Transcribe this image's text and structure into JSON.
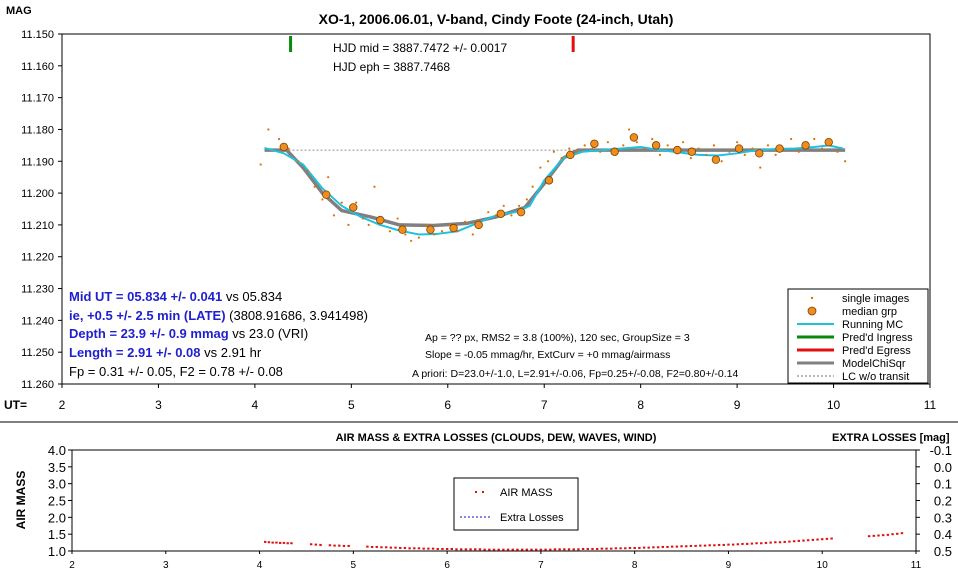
{
  "chart_data": [
    {
      "type": "scatter",
      "title": "XO-1, 2006.06.01, V-band, Cindy Foote (24-inch, Utah)",
      "ylabel": "MAG",
      "xlabel": "UT=",
      "ylim": [
        11.15,
        11.26
      ],
      "y_reversed": true,
      "xlim": [
        2,
        11
      ],
      "x_ticks": [
        "2",
        "3",
        "4",
        "5",
        "6",
        "7",
        "8",
        "9",
        "10",
        "11"
      ],
      "y_ticks": [
        "11.150",
        "11.160",
        "11.170",
        "11.180",
        "11.190",
        "11.200",
        "11.210",
        "11.220",
        "11.230",
        "11.240",
        "11.250",
        "11.260"
      ],
      "grid": false,
      "legend_placement": "bottom-right",
      "legend": [
        "single images",
        "median grp",
        "Running MC",
        "Pred'd Ingress",
        "Pred'd Egress",
        "ModelChiSqr",
        "LC w/o transit"
      ],
      "colors": {
        "single": "#e07000",
        "median_fill": "#f28c1c",
        "running": "#1ec1e0",
        "ingress": "#0a8a0a",
        "egress": "#e01010",
        "model": "#808080",
        "lc_no_transit": "#707070"
      },
      "single_images": [
        [
          4.06,
          11.191
        ],
        [
          4.14,
          11.18
        ],
        [
          4.25,
          11.183
        ],
        [
          4.35,
          11.186
        ],
        [
          4.45,
          11.19
        ],
        [
          4.55,
          11.193
        ],
        [
          4.62,
          11.198
        ],
        [
          4.7,
          11.202
        ],
        [
          4.76,
          11.195
        ],
        [
          4.82,
          11.207
        ],
        [
          4.9,
          11.203
        ],
        [
          4.97,
          11.21
        ],
        [
          5.05,
          11.203
        ],
        [
          5.12,
          11.208
        ],
        [
          5.18,
          11.21
        ],
        [
          5.24,
          11.198
        ],
        [
          5.32,
          11.209
        ],
        [
          5.4,
          11.212
        ],
        [
          5.48,
          11.208
        ],
        [
          5.56,
          11.213
        ],
        [
          5.62,
          11.215
        ],
        [
          5.7,
          11.214
        ],
        [
          5.78,
          11.21
        ],
        [
          5.86,
          11.213
        ],
        [
          5.94,
          11.212
        ],
        [
          6.02,
          11.21
        ],
        [
          6.1,
          11.212
        ],
        [
          6.18,
          11.209
        ],
        [
          6.26,
          11.213
        ],
        [
          6.34,
          11.21
        ],
        [
          6.42,
          11.206
        ],
        [
          6.5,
          11.207
        ],
        [
          6.58,
          11.204
        ],
        [
          6.66,
          11.207
        ],
        [
          6.74,
          11.204
        ],
        [
          6.82,
          11.202
        ],
        [
          6.88,
          11.198
        ],
        [
          6.96,
          11.192
        ],
        [
          7.04,
          11.19
        ],
        [
          7.1,
          11.187
        ],
        [
          7.18,
          11.189
        ],
        [
          7.26,
          11.186
        ],
        [
          7.34,
          11.187
        ],
        [
          7.42,
          11.185
        ],
        [
          7.5,
          11.186
        ],
        [
          7.58,
          11.187
        ],
        [
          7.66,
          11.184
        ],
        [
          7.74,
          11.188
        ],
        [
          7.82,
          11.185
        ],
        [
          7.88,
          11.18
        ],
        [
          7.96,
          11.184
        ],
        [
          8.04,
          11.186
        ],
        [
          8.12,
          11.183
        ],
        [
          8.2,
          11.188
        ],
        [
          8.28,
          11.185
        ],
        [
          8.36,
          11.187
        ],
        [
          8.44,
          11.184
        ],
        [
          8.52,
          11.189
        ],
        [
          8.6,
          11.186
        ],
        [
          8.68,
          11.188
        ],
        [
          8.76,
          11.185
        ],
        [
          8.84,
          11.19
        ],
        [
          8.92,
          11.187
        ],
        [
          9.0,
          11.184
        ],
        [
          9.08,
          11.188
        ],
        [
          9.16,
          11.186
        ],
        [
          9.24,
          11.192
        ],
        [
          9.32,
          11.185
        ],
        [
          9.4,
          11.188
        ],
        [
          9.48,
          11.186
        ],
        [
          9.56,
          11.183
        ],
        [
          9.64,
          11.187
        ],
        [
          9.72,
          11.185
        ],
        [
          9.8,
          11.183
        ],
        [
          9.88,
          11.186
        ],
        [
          9.96,
          11.184
        ],
        [
          10.04,
          11.187
        ],
        [
          10.12,
          11.19
        ]
      ],
      "median_grp": [
        [
          4.3,
          11.1855
        ],
        [
          4.74,
          11.2005
        ],
        [
          5.02,
          11.2045
        ],
        [
          5.3,
          11.2085
        ],
        [
          5.53,
          11.2115
        ],
        [
          5.82,
          11.2115
        ],
        [
          6.06,
          11.211
        ],
        [
          6.32,
          11.21
        ],
        [
          6.55,
          11.2065
        ],
        [
          6.76,
          11.206
        ],
        [
          7.05,
          11.196
        ],
        [
          7.27,
          11.188
        ],
        [
          7.52,
          11.1845
        ],
        [
          7.73,
          11.187
        ],
        [
          7.93,
          11.1825
        ],
        [
          8.16,
          11.185
        ],
        [
          8.38,
          11.1865
        ],
        [
          8.53,
          11.187
        ],
        [
          8.78,
          11.1895
        ],
        [
          9.02,
          11.186
        ],
        [
          9.23,
          11.1875
        ],
        [
          9.44,
          11.186
        ],
        [
          9.71,
          11.185
        ],
        [
          9.95,
          11.184
        ]
      ],
      "running_mc": [
        [
          4.1,
          11.1858
        ],
        [
          4.3,
          11.1875
        ],
        [
          4.5,
          11.191
        ],
        [
          4.7,
          11.1985
        ],
        [
          4.9,
          11.204
        ],
        [
          5.1,
          11.2075
        ],
        [
          5.3,
          11.21
        ],
        [
          5.5,
          11.2118
        ],
        [
          5.7,
          11.213
        ],
        [
          5.9,
          11.2128
        ],
        [
          6.1,
          11.212
        ],
        [
          6.3,
          11.2095
        ],
        [
          6.5,
          11.207
        ],
        [
          6.7,
          11.206
        ],
        [
          6.85,
          11.204
        ],
        [
          7.0,
          11.196
        ],
        [
          7.2,
          11.189
        ],
        [
          7.4,
          11.187
        ],
        [
          7.6,
          11.1865
        ],
        [
          7.8,
          11.186
        ],
        [
          8.0,
          11.1855
        ],
        [
          8.2,
          11.1865
        ],
        [
          8.4,
          11.1872
        ],
        [
          8.6,
          11.188
        ],
        [
          8.8,
          11.1882
        ],
        [
          9.0,
          11.1875
        ],
        [
          9.2,
          11.1865
        ],
        [
          9.4,
          11.1862
        ],
        [
          9.6,
          11.186
        ],
        [
          9.8,
          11.1855
        ],
        [
          9.95,
          11.185
        ],
        [
          10.1,
          11.186
        ]
      ],
      "model_chisqr": [
        [
          4.1,
          11.1865
        ],
        [
          4.33,
          11.1865
        ],
        [
          4.5,
          11.192
        ],
        [
          4.7,
          11.2
        ],
        [
          4.9,
          11.2055
        ],
        [
          5.2,
          11.2075
        ],
        [
          5.5,
          11.21
        ],
        [
          5.85,
          11.2102
        ],
        [
          6.2,
          11.2095
        ],
        [
          6.5,
          11.2075
        ],
        [
          6.8,
          11.2045
        ],
        [
          7.0,
          11.197
        ],
        [
          7.2,
          11.189
        ],
        [
          7.35,
          11.1865
        ],
        [
          7.5,
          11.1865
        ],
        [
          10.12,
          11.1865
        ]
      ],
      "lc_without_transit": [
        [
          4.1,
          11.1865
        ],
        [
          10.12,
          11.1865
        ]
      ],
      "predicted_ingress_ut": 4.37,
      "predicted_egress_ut": 7.3,
      "annotations": {
        "hjd_mid": "HJD mid = 3887.7472 +/- 0.0017",
        "hjd_eph": "HJD eph = 3887.7468",
        "mid_ut_bold": "Mid UT = 05.834 +/- 0.041",
        "mid_ut_rest": " vs 05.834",
        "ie_bold": "ie, +0.5 +/- 2.5 min (LATE)",
        "ie_rest": " (3808.91686, 3.941498)",
        "depth_bold": "Depth = 23.9 +/- 0.9 mmag",
        "depth_rest": " vs 23.0 (VRI)",
        "length_bold": "Length = 2.91 +/- 0.08",
        "length_rest": "  vs 2.91 hr",
        "fp_f2": "Fp = 0.31 +/- 0.05, F2 = 0.78 +/- 0.08",
        "ap_line": "Ap = ?? px, RMS2 = 3.8 (100%), 120 sec, GroupSize = 3",
        "slope_line": "Slope = -0.05 mmag/hr, ExtCurv = +0 mmag/airmass",
        "apriori_line": "A priori: D=23.0+/-1.0, L=2.91+/-0.06, Fp=0.25+/-0.08, F2=0.80+/-0.14"
      }
    },
    {
      "type": "scatter",
      "title": "AIR MASS & EXTRA LOSSES (CLOUDS, DEW, WAVES, WIND)",
      "ylabel": "AIR MASS",
      "y2label": "EXTRA LOSSES [mag]",
      "xlim": [
        2,
        11
      ],
      "ylim": [
        1.0,
        4.0
      ],
      "y2lim": [
        0.5,
        -0.1
      ],
      "x_ticks": [
        "2",
        "3",
        "4",
        "5",
        "6",
        "7",
        "8",
        "9",
        "10",
        "11"
      ],
      "y_ticks": [
        "1.0",
        "1.5",
        "2.0",
        "2.5",
        "3.0",
        "3.5",
        "4.0"
      ],
      "y2_ticks": [
        "0.5",
        "0.4",
        "0.3",
        "0.2",
        "0.1",
        "0.0",
        "-0.1"
      ],
      "legend_placement": "center",
      "legend": [
        "AIR MASS",
        "Extra Losses"
      ],
      "colors": {
        "airmass": "#e01010",
        "extra_losses": "#1010c0"
      },
      "airmass": [
        [
          4.06,
          1.27
        ],
        [
          4.1,
          1.26
        ],
        [
          4.14,
          1.25
        ],
        [
          4.18,
          1.25
        ],
        [
          4.22,
          1.24
        ],
        [
          4.26,
          1.24
        ],
        [
          4.3,
          1.23
        ],
        [
          4.34,
          1.23
        ],
        [
          4.55,
          1.2
        ],
        [
          4.6,
          1.19
        ],
        [
          4.65,
          1.18
        ],
        [
          4.75,
          1.17
        ],
        [
          4.8,
          1.16
        ],
        [
          4.85,
          1.16
        ],
        [
          4.9,
          1.15
        ],
        [
          4.95,
          1.15
        ],
        [
          5.15,
          1.13
        ],
        [
          5.2,
          1.12
        ],
        [
          5.25,
          1.12
        ],
        [
          5.3,
          1.11
        ],
        [
          5.35,
          1.11
        ],
        [
          5.4,
          1.1
        ],
        [
          5.45,
          1.1
        ],
        [
          5.5,
          1.09
        ],
        [
          5.55,
          1.09
        ],
        [
          5.6,
          1.08
        ],
        [
          5.65,
          1.08
        ],
        [
          5.7,
          1.08
        ],
        [
          5.75,
          1.07
        ],
        [
          5.8,
          1.07
        ],
        [
          5.85,
          1.07
        ],
        [
          5.9,
          1.06
        ],
        [
          5.95,
          1.06
        ],
        [
          6.0,
          1.06
        ],
        [
          6.05,
          1.06
        ],
        [
          6.1,
          1.05
        ],
        [
          6.15,
          1.05
        ],
        [
          6.2,
          1.05
        ],
        [
          6.25,
          1.05
        ],
        [
          6.3,
          1.05
        ],
        [
          6.35,
          1.05
        ],
        [
          6.4,
          1.04
        ],
        [
          6.45,
          1.04
        ],
        [
          6.5,
          1.04
        ],
        [
          6.55,
          1.04
        ],
        [
          6.6,
          1.04
        ],
        [
          6.65,
          1.04
        ],
        [
          6.7,
          1.04
        ],
        [
          6.75,
          1.04
        ],
        [
          6.8,
          1.04
        ],
        [
          6.85,
          1.04
        ],
        [
          6.9,
          1.04
        ],
        [
          6.95,
          1.04
        ],
        [
          7.0,
          1.04
        ],
        [
          7.05,
          1.04
        ],
        [
          7.1,
          1.04
        ],
        [
          7.15,
          1.05
        ],
        [
          7.2,
          1.05
        ],
        [
          7.25,
          1.05
        ],
        [
          7.3,
          1.05
        ],
        [
          7.35,
          1.05
        ],
        [
          7.4,
          1.05
        ],
        [
          7.45,
          1.06
        ],
        [
          7.5,
          1.06
        ],
        [
          7.55,
          1.06
        ],
        [
          7.6,
          1.06
        ],
        [
          7.65,
          1.07
        ],
        [
          7.7,
          1.07
        ],
        [
          7.75,
          1.07
        ],
        [
          7.8,
          1.08
        ],
        [
          7.85,
          1.08
        ],
        [
          7.9,
          1.08
        ],
        [
          7.95,
          1.09
        ],
        [
          8.0,
          1.09
        ],
        [
          8.05,
          1.09
        ],
        [
          8.1,
          1.1
        ],
        [
          8.15,
          1.1
        ],
        [
          8.2,
          1.11
        ],
        [
          8.25,
          1.11
        ],
        [
          8.3,
          1.12
        ],
        [
          8.35,
          1.12
        ],
        [
          8.4,
          1.13
        ],
        [
          8.45,
          1.13
        ],
        [
          8.5,
          1.14
        ],
        [
          8.55,
          1.14
        ],
        [
          8.6,
          1.15
        ],
        [
          8.65,
          1.15
        ],
        [
          8.7,
          1.16
        ],
        [
          8.75,
          1.16
        ],
        [
          8.8,
          1.17
        ],
        [
          8.85,
          1.17
        ],
        [
          8.9,
          1.18
        ],
        [
          8.95,
          1.18
        ],
        [
          9.0,
          1.19
        ],
        [
          9.05,
          1.19
        ],
        [
          9.1,
          1.2
        ],
        [
          9.15,
          1.21
        ],
        [
          9.2,
          1.21
        ],
        [
          9.25,
          1.22
        ],
        [
          9.3,
          1.23
        ],
        [
          9.35,
          1.23
        ],
        [
          9.4,
          1.24
        ],
        [
          9.45,
          1.25
        ],
        [
          9.5,
          1.26
        ],
        [
          9.55,
          1.26
        ],
        [
          9.6,
          1.27
        ],
        [
          9.65,
          1.28
        ],
        [
          9.7,
          1.29
        ],
        [
          9.75,
          1.3
        ],
        [
          9.8,
          1.31
        ],
        [
          9.85,
          1.32
        ],
        [
          9.9,
          1.33
        ],
        [
          9.95,
          1.34
        ],
        [
          10.0,
          1.35
        ],
        [
          10.05,
          1.36
        ],
        [
          10.1,
          1.37
        ],
        [
          10.5,
          1.44
        ],
        [
          10.55,
          1.45
        ],
        [
          10.6,
          1.46
        ],
        [
          10.65,
          1.47
        ],
        [
          10.7,
          1.48
        ],
        [
          10.75,
          1.5
        ],
        [
          10.8,
          1.51
        ],
        [
          10.85,
          1.53
        ]
      ]
    }
  ]
}
